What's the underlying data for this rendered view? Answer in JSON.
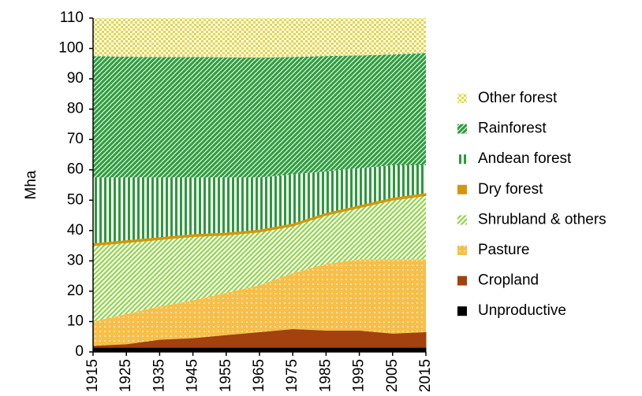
{
  "chart_data": {
    "type": "stacked-area",
    "y_label": "Mha",
    "x": [
      1915,
      1925,
      1935,
      1945,
      1955,
      1965,
      1975,
      1985,
      1995,
      2005,
      2015
    ],
    "xlim": [
      1915,
      2015
    ],
    "xticks": [
      1915,
      1925,
      1935,
      1945,
      1955,
      1965,
      1975,
      1985,
      1995,
      2005,
      2015
    ],
    "ylim": [
      0,
      110
    ],
    "yticks": [
      0,
      10,
      20,
      30,
      40,
      50,
      60,
      70,
      80,
      90,
      100,
      110
    ],
    "series": [
      {
        "name": "Unproductive",
        "color": "#000000",
        "values": [
          1.5,
          1.5,
          1.5,
          1.5,
          1.5,
          1.5,
          1.5,
          1.5,
          1.5,
          1.5,
          1.5
        ]
      },
      {
        "name": "Cropland",
        "color": "#a3410f",
        "values": [
          0.5,
          1,
          2.5,
          3,
          4,
          5,
          6,
          5.5,
          5.5,
          4.5,
          5
        ]
      },
      {
        "name": "Pasture",
        "color": "#f5b42a",
        "values": [
          8,
          10,
          11,
          12.5,
          14,
          15.5,
          18.5,
          22,
          23.5,
          24.5,
          24
        ]
      },
      {
        "name": "Shrubland & others",
        "color": "#8fd646",
        "values": [
          25,
          23.5,
          22,
          21,
          19,
          17.5,
          15.5,
          16,
          17,
          19.5,
          21
        ]
      },
      {
        "name": "Dry forest",
        "color": "#d4960c",
        "values": [
          0.8,
          0.8,
          0.8,
          0.8,
          0.8,
          0.8,
          0.8,
          0.8,
          0.8,
          0.8,
          0.8
        ]
      },
      {
        "name": "Andean forest",
        "color": "#2a9a38",
        "values": [
          21.7,
          20.7,
          19.7,
          18.7,
          18.2,
          17.2,
          16.2,
          13.7,
          12.2,
          10.7,
          9.2
        ]
      },
      {
        "name": "Rainforest",
        "color": "#2e9e3e",
        "values": [
          40,
          39.8,
          39.7,
          39.7,
          39.6,
          39.5,
          38.7,
          38,
          37.2,
          36.5,
          37
        ]
      },
      {
        "name": "Other forest",
        "color": "#e3d64a",
        "values": [
          12.5,
          12.7,
          12.8,
          12.8,
          12.9,
          13,
          12.8,
          12.5,
          12.3,
          12,
          11.5
        ]
      }
    ]
  }
}
